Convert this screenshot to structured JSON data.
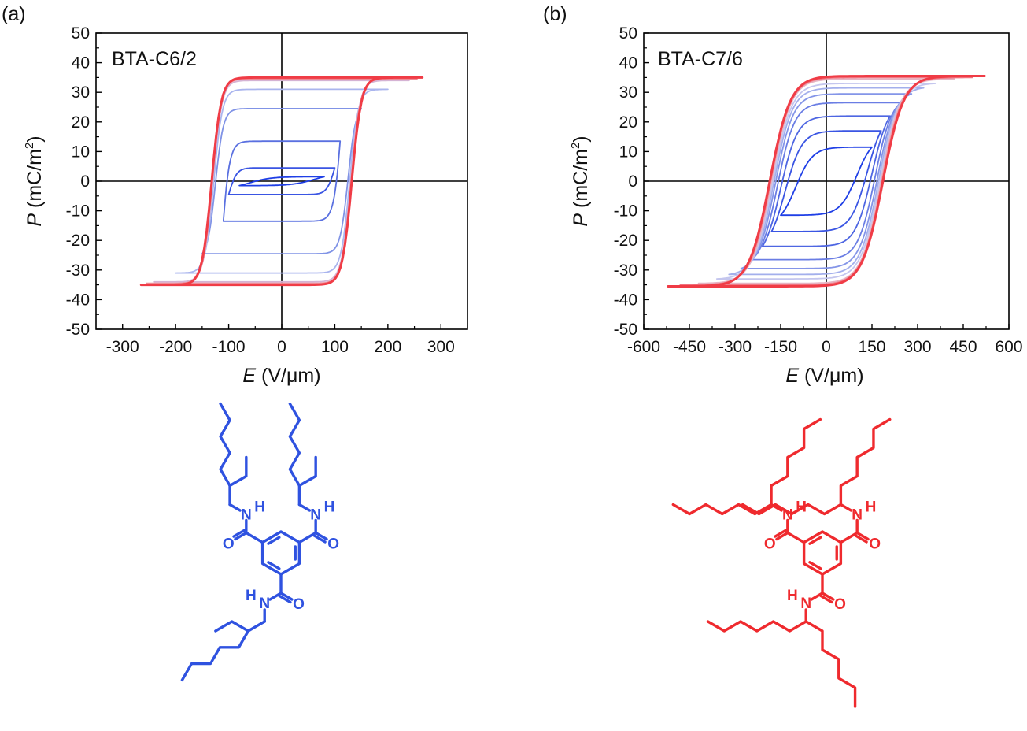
{
  "panels": [
    {
      "panel_label": "(a)",
      "molecule_color": "#2f52e0",
      "hex_center": [
        357,
        702
      ],
      "hex_radius": 27,
      "chains": "blue",
      "chart_data": {
        "type": "line",
        "sample_label": "BTA-C6/2",
        "xlabel_italic": "E",
        "xlabel_unit": " (V/μm)",
        "ylabel_italic": "P",
        "ylabel_unit": " (mC/m",
        "ylabel_sup": "2",
        "ylabel_close": ")",
        "xlim": [
          -350,
          350
        ],
        "ylim": [
          -50,
          50
        ],
        "xticks": [
          -300,
          -200,
          -100,
          0,
          100,
          200,
          300
        ],
        "xtick_labels": [
          "-300",
          "-200",
          "-100",
          "0",
          "100",
          "200",
          "300"
        ],
        "yticks": [
          -50,
          -40,
          -30,
          -20,
          -10,
          0,
          10,
          20,
          30,
          40,
          50
        ],
        "ytick_labels": [
          "-50",
          "-40",
          "-30",
          "-20",
          "-10",
          "0",
          "10",
          "20",
          "30",
          "40",
          "50"
        ],
        "series": [
          {
            "color": "#1f3fe6",
            "Emax": 80,
            "Pr": 1.2,
            "Ps": 1.5,
            "Ec": 60,
            "w": 40
          },
          {
            "color": "#3a55e3",
            "Emax": 100,
            "Pr": 4,
            "Ps": 4.5,
            "Ec": 100,
            "w": 15
          },
          {
            "color": "#5a70e0",
            "Emax": 110,
            "Pr": 12,
            "Ps": 13.5,
            "Ec": 115,
            "w": 15
          },
          {
            "color": "#8093e6",
            "Emax": 150,
            "Pr": 22,
            "Ps": 24.5,
            "Ec": 125,
            "w": 15
          },
          {
            "color": "#aab5ee",
            "Emax": 200,
            "Pr": 29,
            "Ps": 31,
            "Ec": 128,
            "w": 16
          },
          {
            "color": "#d5b3d4",
            "Emax": 240,
            "Pr": 33,
            "Ps": 34,
            "Ec": 130,
            "w": 17
          },
          {
            "color": "#ee8a95",
            "Emax": 255,
            "Pr": 34,
            "Ps": 34.5,
            "Ec": 131,
            "w": 17
          },
          {
            "color": "#f03c46",
            "Emax": 265,
            "Pr": 34.5,
            "Ps": 35,
            "Ec": 132,
            "w": 18
          }
        ]
      }
    },
    {
      "panel_label": "(b)",
      "molecule_color": "#ef2a2e",
      "hex_center": [
        1045,
        702
      ],
      "hex_radius": 27,
      "chains": "red",
      "chart_data": {
        "type": "line",
        "sample_label": "BTA-C7/6",
        "xlabel_italic": "E",
        "xlabel_unit": " (V/μm)",
        "ylabel_italic": "P",
        "ylabel_unit": " (mC/m",
        "ylabel_sup": "2",
        "ylabel_close": ")",
        "xlim": [
          -600,
          600
        ],
        "ylim": [
          -50,
          50
        ],
        "xticks": [
          -600,
          -450,
          -300,
          -150,
          0,
          150,
          300,
          450,
          600
        ],
        "xtick_labels": [
          "-600",
          "-450",
          "-300",
          "-150",
          "0",
          "150",
          "300",
          "450",
          "600"
        ],
        "yticks": [
          -50,
          -40,
          -30,
          -20,
          -10,
          0,
          10,
          20,
          30,
          40,
          50
        ],
        "ytick_labels": [
          "-50",
          "-40",
          "-30",
          "-20",
          "-10",
          "0",
          "10",
          "20",
          "30",
          "40",
          "50"
        ],
        "series": [
          {
            "color": "#1f3fe6",
            "Emax": 150,
            "Pr": 11,
            "Ps": 11.5,
            "Ec": 100,
            "w": 55
          },
          {
            "color": "#3a55e3",
            "Emax": 180,
            "Pr": 16,
            "Ps": 17,
            "Ec": 135,
            "w": 55
          },
          {
            "color": "#4e66e2",
            "Emax": 210,
            "Pr": 21,
            "Ps": 22,
            "Ec": 150,
            "w": 55
          },
          {
            "color": "#6a7de4",
            "Emax": 245,
            "Pr": 25,
            "Ps": 26.5,
            "Ec": 160,
            "w": 56
          },
          {
            "color": "#8495e8",
            "Emax": 280,
            "Pr": 28,
            "Ps": 29.5,
            "Ec": 167,
            "w": 58
          },
          {
            "color": "#a3afec",
            "Emax": 320,
            "Pr": 30,
            "Ps": 31.5,
            "Ec": 172,
            "w": 60
          },
          {
            "color": "#c4c6ee",
            "Emax": 360,
            "Pr": 32,
            "Ps": 33,
            "Ec": 176,
            "w": 62
          },
          {
            "color": "#e6b3c2",
            "Emax": 420,
            "Pr": 34,
            "Ps": 34.5,
            "Ec": 180,
            "w": 64
          },
          {
            "color": "#f07a86",
            "Emax": 480,
            "Pr": 35,
            "Ps": 35,
            "Ec": 183,
            "w": 66
          },
          {
            "color": "#f03c46",
            "Emax": 520,
            "Pr": 35.5,
            "Ps": 35.5,
            "Ec": 186,
            "w": 68
          }
        ]
      }
    }
  ],
  "atoms": {
    "N": "N",
    "H": "H",
    "O": "O"
  }
}
